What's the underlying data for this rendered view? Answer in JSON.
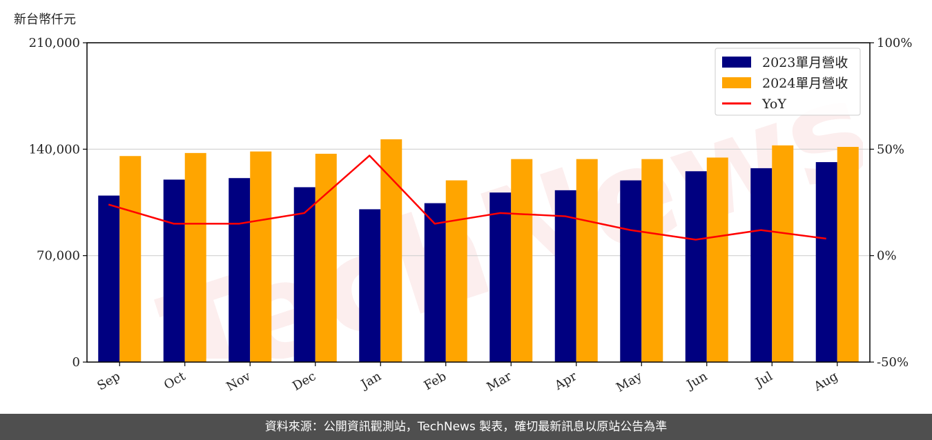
{
  "chart_data": {
    "type": "bar",
    "title": "",
    "unit_label": "新台幣仟元",
    "categories": [
      "Sep",
      "Oct",
      "Nov",
      "Dec",
      "Jan",
      "Feb",
      "Mar",
      "Apr",
      "May",
      "Jun",
      "Jul",
      "Aug"
    ],
    "series": [
      {
        "name": "2023單月營收",
        "type": "bar",
        "axis": "left",
        "color": "#000080",
        "values": [
          109500,
          120000,
          121000,
          115000,
          100500,
          104500,
          111500,
          113000,
          119500,
          125500,
          127500,
          131500
        ]
      },
      {
        "name": "2024單月營收",
        "type": "bar",
        "axis": "left",
        "color": "#ffa500",
        "values": [
          135500,
          137500,
          138500,
          137000,
          146500,
          119500,
          133500,
          133500,
          133500,
          134500,
          142500,
          141500
        ]
      },
      {
        "name": "YoY",
        "type": "line",
        "axis": "right",
        "color": "#ff0000",
        "values": [
          0.24,
          0.15,
          0.15,
          0.2,
          0.47,
          0.15,
          0.2,
          0.185,
          0.12,
          0.075,
          0.12,
          0.08
        ]
      }
    ],
    "y_left": {
      "ylim": [
        0,
        210000
      ],
      "ticks": [
        0,
        70000,
        140000,
        210000
      ],
      "tick_labels": [
        "0",
        "70,000",
        "140,000",
        "210,000"
      ]
    },
    "y_right": {
      "ylim": [
        -0.5,
        1.0
      ],
      "ticks": [
        -0.5,
        0,
        0.5,
        1.0
      ],
      "tick_labels": [
        "-50%",
        "0%",
        "50%",
        "100%"
      ]
    },
    "grid": "horizontal",
    "legend_position": "top-right"
  },
  "watermark": "TechNews",
  "footer": {
    "text": "資料來源：公開資訊觀測站，TechNews 製表，確切最新訊息以原站公告為準"
  }
}
